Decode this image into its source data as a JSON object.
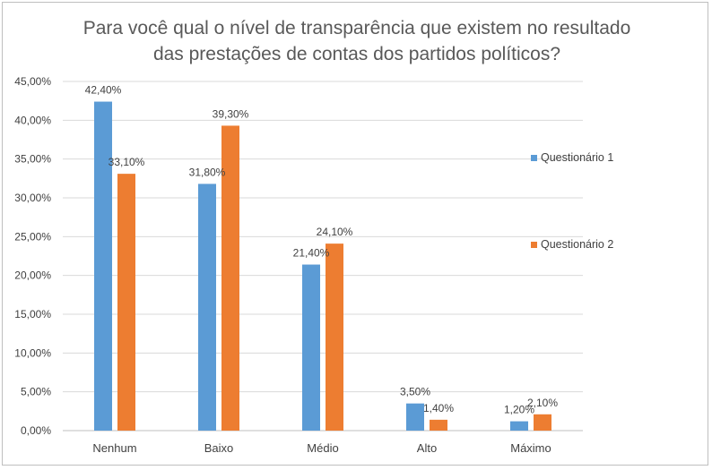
{
  "chart_data": {
    "type": "bar",
    "title_lines": [
      "Para você qual o nível de transparência que existem no resultado",
      "das prestações de contas dos partidos políticos?"
    ],
    "categories": [
      "Nenhum",
      "Baixo",
      "Médio",
      "Alto",
      "Máximo"
    ],
    "series": [
      {
        "name": "Questionário  1",
        "values": [
          42.4,
          31.8,
          21.4,
          3.5,
          1.2
        ],
        "labels": [
          "42,40%",
          "31,80%",
          "21,40%",
          "3,50%",
          "1,20%"
        ],
        "color": "#5B9BD5"
      },
      {
        "name": "Questionário 2",
        "values": [
          33.1,
          39.3,
          24.1,
          1.4,
          2.1
        ],
        "labels": [
          "33,10%",
          "39,30%",
          "24,10%",
          "1,40%",
          "2,10%"
        ],
        "color": "#ED7D31"
      }
    ],
    "yticks": [
      "0,00%",
      "5,00%",
      "10,00%",
      "15,00%",
      "20,00%",
      "25,00%",
      "30,00%",
      "35,00%",
      "40,00%",
      "45,00%"
    ],
    "ylim": [
      0,
      45
    ],
    "grid": true,
    "legend_position": "right",
    "gridline_color": "#d9d9d9"
  }
}
